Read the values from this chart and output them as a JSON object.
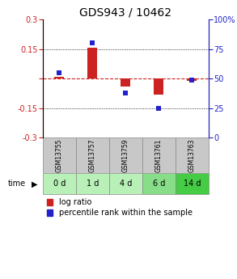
{
  "title": "GDS943 / 10462",
  "samples": [
    "GSM13755",
    "GSM13757",
    "GSM13759",
    "GSM13761",
    "GSM13763"
  ],
  "time_labels": [
    "0 d",
    "1 d",
    "4 d",
    "6 d",
    "14 d"
  ],
  "log_ratio": [
    0.01,
    0.155,
    -0.04,
    -0.08,
    -0.01
  ],
  "percentile_rank": [
    55,
    80,
    38,
    25,
    49
  ],
  "ylim_left": [
    -0.3,
    0.3
  ],
  "ylim_right": [
    0,
    100
  ],
  "yticks_left": [
    -0.3,
    -0.15,
    0,
    0.15,
    0.3
  ],
  "yticks_right": [
    0,
    25,
    50,
    75,
    100
  ],
  "bar_color": "#cc2222",
  "dot_color": "#2222cc",
  "zero_line_color": "#cc2222",
  "grid_line_color": "#000000",
  "sample_label_bg": "#c8c8c8",
  "time_label_colors": [
    "#b8f0b8",
    "#b8f0b8",
    "#b8f0b8",
    "#88dd88",
    "#44cc44"
  ],
  "bg_color": "#ffffff",
  "title_fontsize": 10,
  "tick_fontsize": 7,
  "legend_fontsize": 7,
  "bar_width": 0.3
}
